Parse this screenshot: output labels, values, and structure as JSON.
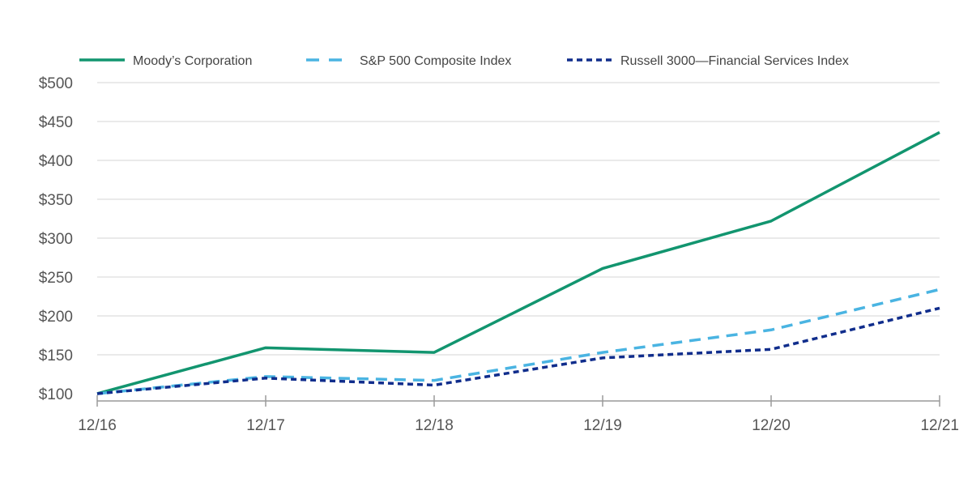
{
  "chart_data": {
    "type": "line",
    "categories": [
      "12/16",
      "12/17",
      "12/18",
      "12/19",
      "12/20",
      "12/21"
    ],
    "series": [
      {
        "name": "Moody’s Corporation",
        "values": [
          100,
          159,
          153,
          261,
          322,
          436
        ],
        "color": "#12956f",
        "style": "solid"
      },
      {
        "name": "S&P 500 Composite Index",
        "values": [
          100,
          122,
          117,
          153,
          182,
          234
        ],
        "color": "#4ab4e2",
        "style": "dashed"
      },
      {
        "name": "Russell 3000—Financial Services Index",
        "values": [
          100,
          120,
          111,
          146,
          157,
          210
        ],
        "color": "#102d8c",
        "style": "dotted"
      }
    ],
    "yticks": [
      100,
      150,
      200,
      250,
      300,
      350,
      400,
      450,
      500
    ],
    "ytick_labels": [
      "$100",
      "$150",
      "$200",
      "$250",
      "$300",
      "$350",
      "$400",
      "$450",
      "$500"
    ],
    "ylim": [
      100,
      500
    ],
    "grid": true,
    "legend_position": "top"
  }
}
